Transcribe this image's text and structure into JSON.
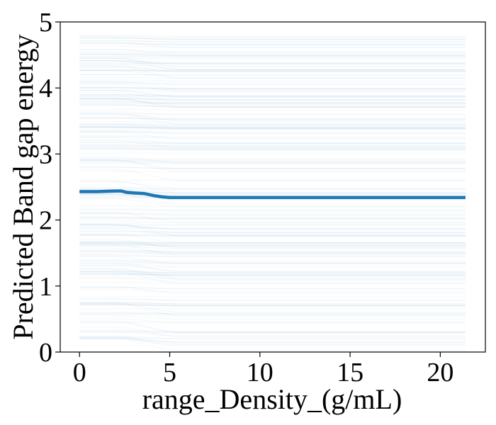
{
  "chart_data": {
    "type": "line",
    "title": "",
    "xlabel": "range_Density_(g/mL)",
    "ylabel": "Predicted Band gap energy",
    "xlim": [
      -1.07,
      22.5
    ],
    "ylim": [
      0,
      5
    ],
    "x_ticks": [
      0,
      5,
      10,
      15,
      20
    ],
    "y_ticks": [
      0,
      1,
      2,
      3,
      4,
      5
    ],
    "grid": false,
    "legend": "none",
    "colors": {
      "average_line": "#1f77b4",
      "individual_lines": "#1f77b4"
    },
    "series": [
      {
        "x": [
          0,
          1,
          2,
          2.3,
          2.6,
          3,
          3.6,
          4.1,
          4.6,
          5,
          6,
          8,
          10,
          12,
          15,
          18,
          21.4
        ],
        "values": [
          2.43,
          2.43,
          2.44,
          2.44,
          2.42,
          2.41,
          2.4,
          2.37,
          2.35,
          2.34,
          2.34,
          2.34,
          2.34,
          2.34,
          2.34,
          2.34,
          2.34
        ]
      }
    ],
    "individual_lines": {
      "count": 260,
      "x_range": [
        0,
        21.4
      ],
      "y_range": [
        0.18,
        4.8
      ],
      "drop_region": [
        2.5,
        5.0
      ],
      "alpha": 0.05
    }
  }
}
